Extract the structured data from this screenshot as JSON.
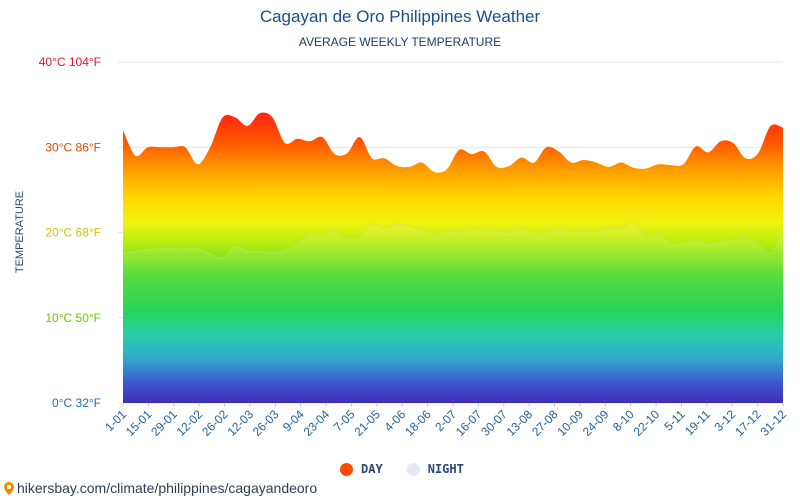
{
  "header": {
    "title": "Cagayan de Oro Philippines Weather",
    "subtitle": "AVERAGE WEEKLY TEMPERATURE"
  },
  "legend": {
    "day": "DAY",
    "night": "NIGHT"
  },
  "source": {
    "text": "hikersbay.com/climate/philippines/cagayandeoro"
  },
  "colors": {
    "day_swatch": "#ff4a00",
    "night_swatch": "#e4eaf0",
    "title": "#1a4e8a",
    "gridline": "#e6e6e6"
  },
  "chart_data": {
    "type": "area",
    "title": "Cagayan de Oro Philippines Weather",
    "subtitle": "AVERAGE WEEKLY TEMPERATURE",
    "ylabel": "TEMPERATURE",
    "xlabel": "",
    "ylim": [
      0,
      40
    ],
    "y_ticks": [
      {
        "value": 0,
        "label": "0°C 32°F",
        "color": "#1f6fb5"
      },
      {
        "value": 10,
        "label": "10°C 50°F",
        "color": "#66cc00"
      },
      {
        "value": 20,
        "label": "20°C 68°F",
        "color": "#d4c400"
      },
      {
        "value": 30,
        "label": "30°C 86°F",
        "color": "#e04a00"
      },
      {
        "value": 40,
        "label": "40°C 104°F",
        "color": "#e8112d"
      }
    ],
    "x_tick_labels": [
      "1-01",
      "15-01",
      "29-01",
      "12-02",
      "26-02",
      "12-03",
      "26-03",
      "9-04",
      "23-04",
      "7-05",
      "21-05",
      "4-06",
      "18-06",
      "2-07",
      "16-07",
      "30-07",
      "13-08",
      "27-08",
      "10-09",
      "24-09",
      "8-10",
      "22-10",
      "5-11",
      "19-11",
      "3-12",
      "17-12",
      "31-12"
    ],
    "grid": true,
    "legend_position": "bottom",
    "series": [
      {
        "name": "DAY",
        "values": [
          32,
          29,
          30,
          30,
          30,
          30,
          28,
          30,
          33.5,
          33.5,
          32.5,
          34,
          33.5,
          30.5,
          31,
          30.7,
          31.2,
          29.2,
          29.3,
          31.2,
          28.7,
          28.7,
          27.8,
          27.7,
          28.2,
          27.1,
          27.4,
          29.7,
          29.2,
          29.5,
          27.7,
          27.8,
          28.8,
          28.2,
          30,
          29.5,
          28.2,
          28.5,
          28.2,
          27.7,
          28.2,
          27.6,
          27.5,
          28,
          27.9,
          28,
          30.1,
          29.4,
          30.7,
          30.5,
          28.7,
          29.3,
          32.5,
          32.3
        ]
      },
      {
        "name": "NIGHT",
        "values": [
          17.5,
          17.8,
          18,
          18.1,
          18.1,
          18.1,
          18.1,
          17.5,
          17,
          18.3,
          17.8,
          17.8,
          17.6,
          18,
          18.5,
          19.8,
          19.5,
          20.2,
          19.3,
          19.5,
          21,
          20.5,
          21,
          20.7,
          20.3,
          19.8,
          20.2,
          20,
          20.3,
          20.2,
          20.2,
          20,
          20.5,
          19.9,
          20,
          20.3,
          20.1,
          20.2,
          20.1,
          20.5,
          20.4,
          21.1,
          19.6,
          19.8,
          18.7,
          18.7,
          19,
          18.6,
          18.8,
          19.1,
          19.3,
          18.6,
          17.6,
          20
        ]
      }
    ]
  }
}
